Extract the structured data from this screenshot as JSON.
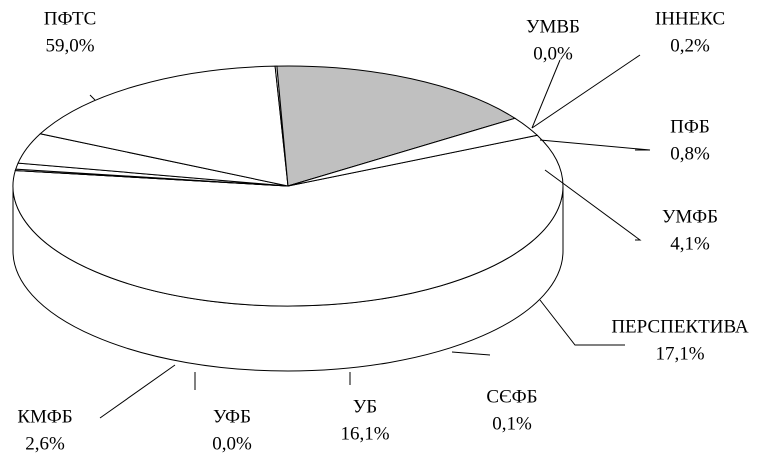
{
  "chart_data": {
    "type": "pie",
    "categories": [
      "ПФТС",
      "УМВБ",
      "ІННЕКС",
      "ПФБ",
      "УМФБ",
      "ПЕРСПЕКТИВА",
      "СЄФБ",
      "УБ",
      "УФБ",
      "КМФБ"
    ],
    "values": [
      59.0,
      0.0,
      0.2,
      0.8,
      4.1,
      17.1,
      0.1,
      16.1,
      0.0,
      2.6
    ],
    "value_labels": [
      "59,0%",
      "0,0%",
      "0,2%",
      "0,8%",
      "4,1%",
      "17,1%",
      "0,1%",
      "16,1%",
      "0,0%",
      "2,6%"
    ],
    "colors": [
      "#ffffff",
      "#ffffff",
      "#ffffff",
      "#ffffff",
      "#ffffff",
      "#ffffff",
      "#ffffff",
      "#c0c0c0",
      "#ffffff",
      "#ffffff"
    ]
  }
}
